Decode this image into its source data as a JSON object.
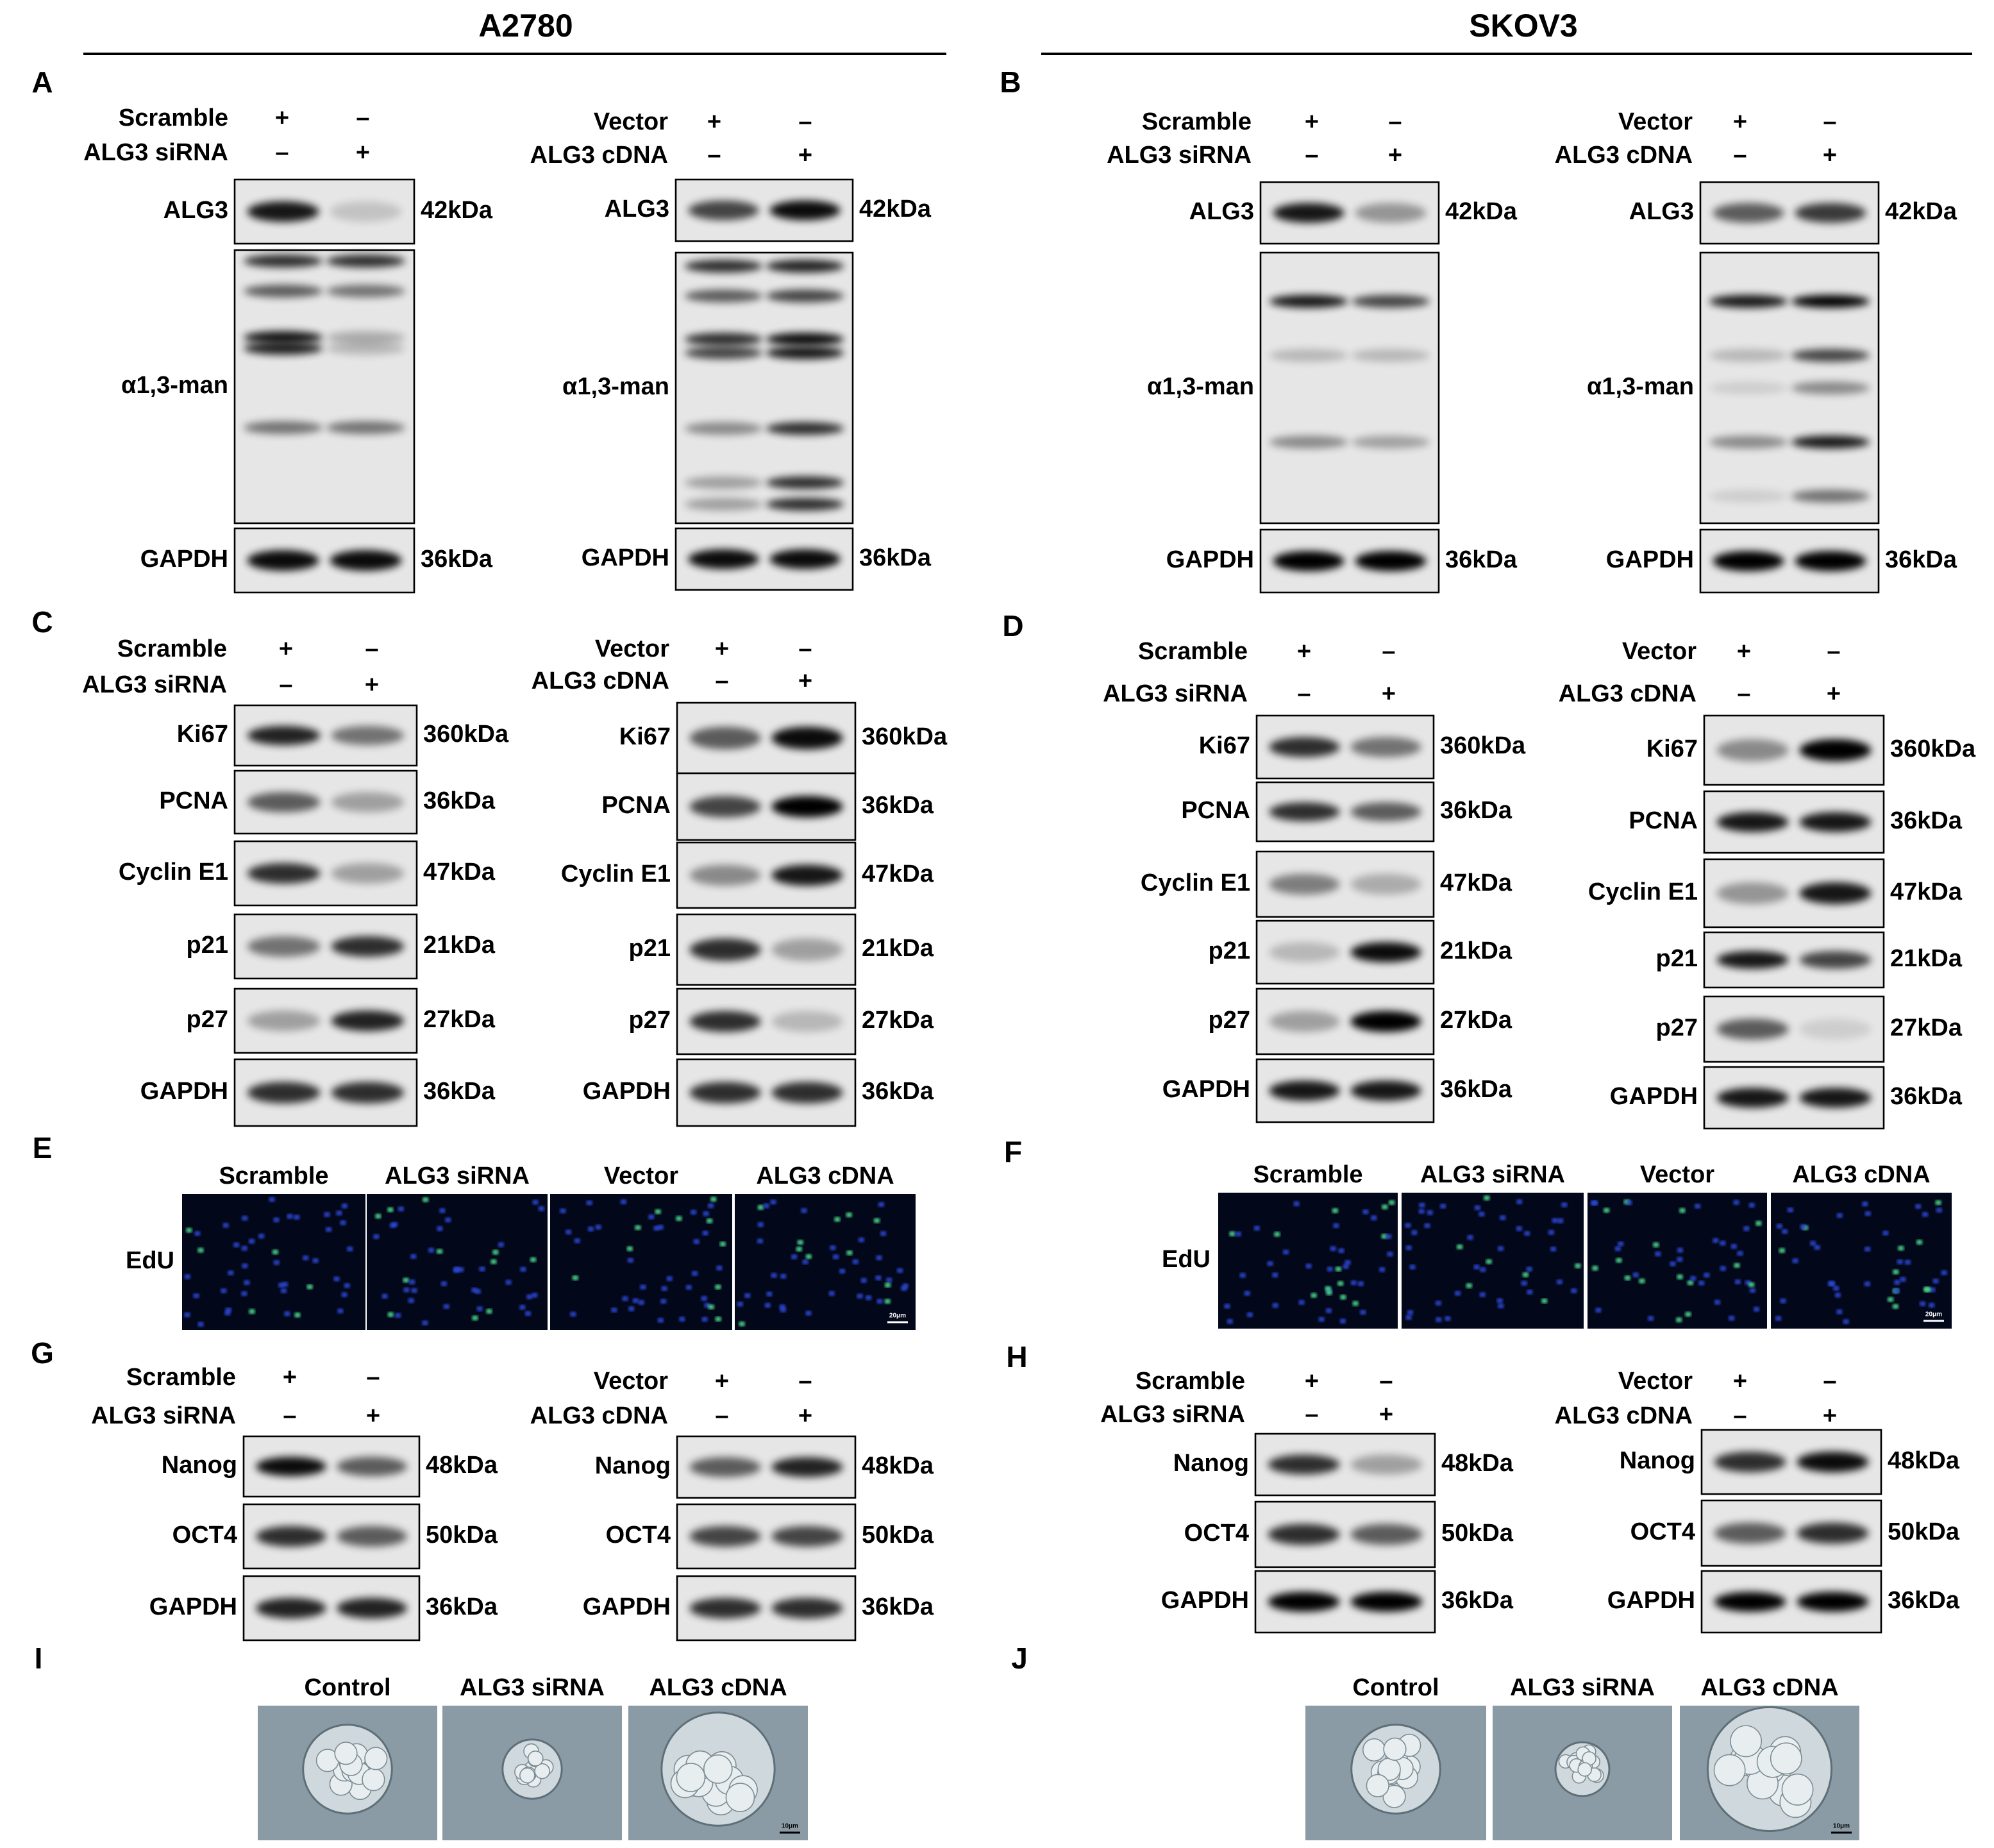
{
  "headers": [
    "A2780",
    "SKOV3"
  ],
  "panels": [
    {
      "label": "A",
      "blots": [
        {
          "conditions": [
            {
              "name": "Scramble",
              "marks": [
                "+",
                "–"
              ]
            },
            {
              "name": "ALG3 siRNA",
              "marks": [
                "–",
                "+"
              ]
            }
          ],
          "rows": [
            {
              "protein": "ALG3",
              "size": "42kDa"
            },
            {
              "protein": "α1,3-man"
            },
            {
              "protein": "GAPDH",
              "size": "36kDa"
            }
          ]
        },
        {
          "conditions": [
            {
              "name": "Vector",
              "marks": [
                "+",
                "–"
              ]
            },
            {
              "name": "ALG3 cDNA",
              "marks": [
                "–",
                "+"
              ]
            }
          ],
          "rows": [
            {
              "protein": "ALG3",
              "size": "42kDa"
            },
            {
              "protein": "α1,3-man"
            },
            {
              "protein": "GAPDH",
              "size": "36kDa"
            }
          ]
        }
      ]
    },
    {
      "label": "B",
      "blots": [
        {
          "conditions": [
            {
              "name": "Scramble",
              "marks": [
                "+",
                "–"
              ]
            },
            {
              "name": "ALG3 siRNA",
              "marks": [
                "–",
                "+"
              ]
            }
          ],
          "rows": [
            {
              "protein": "ALG3",
              "size": "42kDa"
            },
            {
              "protein": "α1,3-man"
            },
            {
              "protein": "GAPDH",
              "size": "36kDa"
            }
          ]
        },
        {
          "conditions": [
            {
              "name": "Vector",
              "marks": [
                "+",
                "–"
              ]
            },
            {
              "name": "ALG3 cDNA",
              "marks": [
                "–",
                "+"
              ]
            }
          ],
          "rows": [
            {
              "protein": "ALG3",
              "size": "42kDa"
            },
            {
              "protein": "α1,3-man"
            },
            {
              "protein": "GAPDH",
              "size": "36kDa"
            }
          ]
        }
      ]
    },
    {
      "label": "C",
      "blots": [
        {
          "conditions": [
            {
              "name": "Scramble",
              "marks": [
                "+",
                "–"
              ]
            },
            {
              "name": "ALG3 siRNA",
              "marks": [
                "–",
                "+"
              ]
            }
          ],
          "rows": [
            {
              "protein": "Ki67",
              "size": "360kDa"
            },
            {
              "protein": "PCNA",
              "size": "36kDa"
            },
            {
              "protein": "Cyclin E1",
              "size": "47kDa"
            },
            {
              "protein": "p21",
              "size": "21kDa"
            },
            {
              "protein": "p27",
              "size": "27kDa"
            },
            {
              "protein": "GAPDH",
              "size": "36kDa"
            }
          ]
        },
        {
          "conditions": [
            {
              "name": "Vector",
              "marks": [
                "+",
                "–"
              ]
            },
            {
              "name": "ALG3 cDNA",
              "marks": [
                "–",
                "+"
              ]
            }
          ],
          "rows": [
            {
              "protein": "Ki67",
              "size": "360kDa"
            },
            {
              "protein": "PCNA",
              "size": "36kDa"
            },
            {
              "protein": "Cyclin E1",
              "size": "47kDa"
            },
            {
              "protein": "p21",
              "size": "21kDa"
            },
            {
              "protein": "p27",
              "size": "27kDa"
            },
            {
              "protein": "GAPDH",
              "size": "36kDa"
            }
          ]
        }
      ]
    },
    {
      "label": "D",
      "blots": [
        {
          "conditions": [
            {
              "name": "Scramble",
              "marks": [
                "+",
                "–"
              ]
            },
            {
              "name": "ALG3 siRNA",
              "marks": [
                "–",
                "+"
              ]
            }
          ],
          "rows": [
            {
              "protein": "Ki67",
              "size": "360kDa"
            },
            {
              "protein": "PCNA",
              "size": "36kDa"
            },
            {
              "protein": "Cyclin E1",
              "size": "47kDa"
            },
            {
              "protein": "p21",
              "size": "21kDa"
            },
            {
              "protein": "p27",
              "size": "27kDa"
            },
            {
              "protein": "GAPDH",
              "size": "36kDa"
            }
          ]
        },
        {
          "conditions": [
            {
              "name": "Vector",
              "marks": [
                "+",
                "–"
              ]
            },
            {
              "name": "ALG3 cDNA",
              "marks": [
                "–",
                "+"
              ]
            }
          ],
          "rows": [
            {
              "protein": "Ki67",
              "size": "360kDa"
            },
            {
              "protein": "PCNA",
              "size": "36kDa"
            },
            {
              "protein": "Cyclin E1",
              "size": "47kDa"
            },
            {
              "protein": "p21",
              "size": "21kDa"
            },
            {
              "protein": "p27",
              "size": "27kDa"
            },
            {
              "protein": "GAPDH",
              "size": "36kDa"
            }
          ]
        }
      ]
    },
    {
      "label": "E",
      "row_label": "EdU",
      "images": [
        "Scramble",
        "ALG3 siRNA",
        "Vector",
        "ALG3 cDNA"
      ],
      "scale_bar": "20μm"
    },
    {
      "label": "F",
      "row_label": "EdU",
      "images": [
        "Scramble",
        "ALG3 siRNA",
        "Vector",
        "ALG3 cDNA"
      ],
      "scale_bar": "20μm"
    },
    {
      "label": "G",
      "blots": [
        {
          "conditions": [
            {
              "name": "Scramble",
              "marks": [
                "+",
                "–"
              ]
            },
            {
              "name": "ALG3 siRNA",
              "marks": [
                "–",
                "+"
              ]
            }
          ],
          "rows": [
            {
              "protein": "Nanog",
              "size": "48kDa"
            },
            {
              "protein": "OCT4",
              "size": "50kDa"
            },
            {
              "protein": "GAPDH",
              "size": "36kDa"
            }
          ]
        },
        {
          "conditions": [
            {
              "name": "Vector",
              "marks": [
                "+",
                "–"
              ]
            },
            {
              "name": "ALG3 cDNA",
              "marks": [
                "–",
                "+"
              ]
            }
          ],
          "rows": [
            {
              "protein": "Nanog",
              "size": "48kDa"
            },
            {
              "protein": "OCT4",
              "size": "50kDa"
            },
            {
              "protein": "GAPDH",
              "size": "36kDa"
            }
          ]
        }
      ]
    },
    {
      "label": "H",
      "blots": [
        {
          "conditions": [
            {
              "name": "Scramble",
              "marks": [
                "+",
                "–"
              ]
            },
            {
              "name": "ALG3 siRNA",
              "marks": [
                "–",
                "+"
              ]
            }
          ],
          "rows": [
            {
              "protein": "Nanog",
              "size": "48kDa"
            },
            {
              "protein": "OCT4",
              "size": "50kDa"
            },
            {
              "protein": "GAPDH",
              "size": "36kDa"
            }
          ]
        },
        {
          "conditions": [
            {
              "name": "Vector",
              "marks": [
                "+",
                "–"
              ]
            },
            {
              "name": "ALG3 cDNA",
              "marks": [
                "–",
                "+"
              ]
            }
          ],
          "rows": [
            {
              "protein": "Nanog",
              "size": "48kDa"
            },
            {
              "protein": "OCT4",
              "size": "50kDa"
            },
            {
              "protein": "GAPDH",
              "size": "36kDa"
            }
          ]
        }
      ]
    },
    {
      "label": "I",
      "images": [
        "Control",
        "ALG3 siRNA",
        "ALG3 cDNA"
      ],
      "scale_bar": "10μm"
    },
    {
      "label": "J",
      "images": [
        "Control",
        "ALG3 siRNA",
        "ALG3 cDNA"
      ],
      "scale_bar": "10μm"
    }
  ]
}
